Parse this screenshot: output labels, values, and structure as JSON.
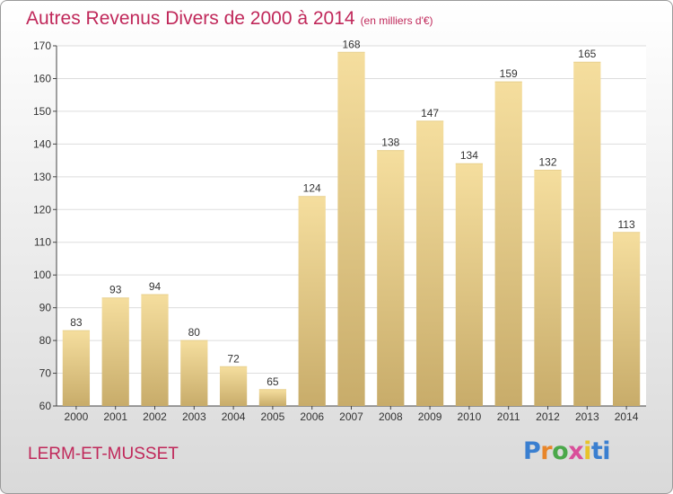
{
  "chart_data": {
    "type": "bar",
    "title": "Autres Revenus Divers de 2000 à 2014",
    "subtitle": "(en milliers d'€)",
    "categories": [
      "2000",
      "2001",
      "2002",
      "2003",
      "2004",
      "2005",
      "2006",
      "2007",
      "2008",
      "2009",
      "2010",
      "2011",
      "2012",
      "2013",
      "2014"
    ],
    "values": [
      83,
      93,
      94,
      80,
      72,
      65,
      124,
      168,
      138,
      147,
      134,
      159,
      132,
      165,
      113
    ],
    "ylim": [
      60,
      170
    ],
    "yticks": [
      60,
      70,
      80,
      90,
      100,
      110,
      120,
      130,
      140,
      150,
      160,
      170
    ],
    "grid": true,
    "bar_color_light": "#f5de9e",
    "bar_color_dark": "#c8ac6a"
  },
  "footer": {
    "commune": "LERM-ET-MUSSET",
    "logo_letters": [
      "P",
      "r",
      "o",
      "x",
      "i",
      "ti"
    ]
  }
}
